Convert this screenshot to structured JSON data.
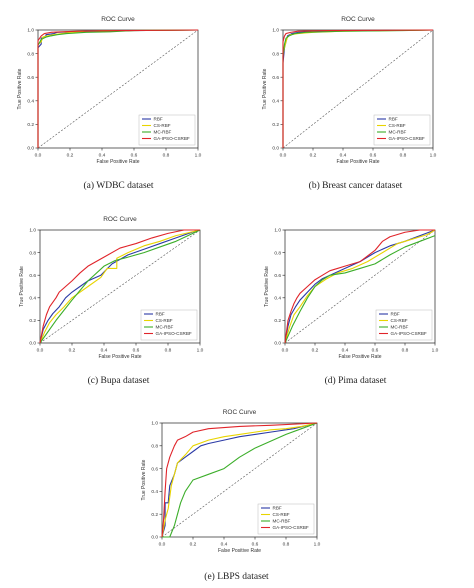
{
  "captions": {
    "a": "(a) WDBC dataset",
    "b": "(b) Breast cancer dataset",
    "c": "(c) Bupa dataset",
    "d": "(d) Pima dataset",
    "e": "(e) LBPS dataset"
  },
  "colors": {
    "RBF": "#2b3aa6",
    "CS-RBF": "#e8d400",
    "MC-RBF": "#3cae2a",
    "GA-IPSO-CSRBF": "#e0242a",
    "diagonal": "#555555"
  },
  "chart_data": [
    {
      "id": "a",
      "type": "line",
      "title": "ROC Curve",
      "xlabel": "False Positive Rate",
      "ylabel": "True Positive Rate",
      "xlim": [
        0,
        1
      ],
      "ylim": [
        0,
        1
      ],
      "xticks": [
        "0.0",
        "0.2",
        "0.4",
        "0.6",
        "0.8",
        "1.0"
      ],
      "yticks": [
        "0.0",
        "0.2",
        "0.4",
        "0.6",
        "0.8",
        "1.0"
      ],
      "legend_position": "bottom-right",
      "diagonal": true,
      "series": [
        {
          "name": "RBF",
          "x": [
            0,
            0,
            0.02,
            0.02,
            0.05,
            0.05,
            0.1,
            0.12,
            0.2,
            0.35,
            0.6,
            1.0
          ],
          "y": [
            0,
            0.85,
            0.88,
            0.93,
            0.95,
            0.96,
            0.97,
            0.98,
            0.985,
            0.99,
            0.995,
            1.0
          ]
        },
        {
          "name": "CS-RBF",
          "x": [
            0,
            0,
            0.02,
            0.03,
            0.06,
            0.1,
            0.15,
            0.2,
            0.3,
            0.5,
            1.0
          ],
          "y": [
            0,
            0.88,
            0.9,
            0.94,
            0.95,
            0.96,
            0.97,
            0.98,
            0.99,
            0.995,
            1.0
          ]
        },
        {
          "name": "MC-RBF",
          "x": [
            0,
            0,
            0.02,
            0.05,
            0.08,
            0.12,
            0.18,
            0.3,
            0.45,
            0.6,
            1.0
          ],
          "y": [
            0,
            0.87,
            0.92,
            0.94,
            0.95,
            0.96,
            0.97,
            0.98,
            0.985,
            0.995,
            1.0
          ]
        },
        {
          "name": "GA-IPSO-CSRBF",
          "x": [
            0,
            0,
            0.01,
            0.02,
            0.04,
            0.08,
            0.15,
            0.25,
            0.5,
            1.0
          ],
          "y": [
            0,
            0.91,
            0.93,
            0.95,
            0.97,
            0.98,
            0.985,
            0.99,
            0.995,
            1.0
          ]
        }
      ]
    },
    {
      "id": "b",
      "type": "line",
      "title": "ROC Curve",
      "xlabel": "False Positive Rate",
      "ylabel": "True Positive Rate",
      "xlim": [
        0,
        1
      ],
      "ylim": [
        0,
        1
      ],
      "xticks": [
        "0.0",
        "0.2",
        "0.4",
        "0.6",
        "0.8",
        "1.0"
      ],
      "yticks": [
        "0.0",
        "0.2",
        "0.4",
        "0.6",
        "0.8",
        "1.0"
      ],
      "legend_position": "bottom-right",
      "diagonal": true,
      "series": [
        {
          "name": "RBF",
          "x": [
            0,
            0,
            0.01,
            0.02,
            0.03,
            0.06,
            0.1,
            0.3,
            0.6,
            1.0
          ],
          "y": [
            0,
            0.72,
            0.85,
            0.9,
            0.95,
            0.97,
            0.98,
            0.99,
            0.995,
            1.0
          ]
        },
        {
          "name": "CS-RBF",
          "x": [
            0,
            0,
            0.02,
            0.03,
            0.05,
            0.1,
            0.2,
            0.4,
            0.7,
            1.0
          ],
          "y": [
            0,
            0.8,
            0.9,
            0.94,
            0.96,
            0.97,
            0.98,
            0.99,
            0.995,
            1.0
          ]
        },
        {
          "name": "MC-RBF",
          "x": [
            0,
            0,
            0.01,
            0.02,
            0.04,
            0.08,
            0.15,
            0.4,
            0.8,
            1.0
          ],
          "y": [
            0,
            0.78,
            0.88,
            0.93,
            0.95,
            0.97,
            0.98,
            0.99,
            0.995,
            1.0
          ]
        },
        {
          "name": "GA-IPSO-CSRBF",
          "x": [
            0,
            0,
            0.01,
            0.02,
            0.05,
            0.1,
            0.3,
            1.0
          ],
          "y": [
            0,
            0.9,
            0.95,
            0.97,
            0.98,
            0.99,
            0.995,
            1.0
          ]
        }
      ]
    },
    {
      "id": "c",
      "type": "line",
      "title": "ROC Curve",
      "xlabel": "False Positive Rate",
      "ylabel": "True Positive Rate",
      "xlim": [
        0,
        1
      ],
      "ylim": [
        0,
        1
      ],
      "xticks": [
        "0.0",
        "0.2",
        "0.4",
        "0.6",
        "0.8",
        "1.0"
      ],
      "yticks": [
        "0.0",
        "0.2",
        "0.4",
        "0.6",
        "0.8",
        "1.0"
      ],
      "legend_position": "bottom-right",
      "diagonal": true,
      "series": [
        {
          "name": "RBF",
          "x": [
            0,
            0.02,
            0.05,
            0.08,
            0.12,
            0.16,
            0.2,
            0.25,
            0.3,
            0.38,
            0.45,
            0.55,
            0.65,
            0.75,
            0.85,
            0.95,
            1.0
          ],
          "y": [
            0,
            0.12,
            0.2,
            0.26,
            0.32,
            0.4,
            0.45,
            0.5,
            0.55,
            0.6,
            0.7,
            0.78,
            0.83,
            0.88,
            0.93,
            0.98,
            1.0
          ]
        },
        {
          "name": "CS-RBF",
          "x": [
            0,
            0.03,
            0.06,
            0.1,
            0.15,
            0.2,
            0.3,
            0.38,
            0.42,
            0.48,
            0.48,
            0.55,
            0.65,
            0.75,
            0.85,
            1.0
          ],
          "y": [
            0,
            0.1,
            0.18,
            0.25,
            0.32,
            0.4,
            0.5,
            0.58,
            0.66,
            0.66,
            0.75,
            0.8,
            0.86,
            0.9,
            0.95,
            1.0
          ]
        },
        {
          "name": "MC-RBF",
          "x": [
            0,
            0.1,
            0.2,
            0.3,
            0.4,
            0.47,
            0.55,
            0.65,
            0.75,
            0.85,
            1.0
          ],
          "y": [
            0,
            0.2,
            0.38,
            0.55,
            0.68,
            0.73,
            0.76,
            0.8,
            0.85,
            0.9,
            1.0
          ]
        },
        {
          "name": "GA-IPSO-CSRBF",
          "x": [
            0,
            0.02,
            0.04,
            0.06,
            0.08,
            0.1,
            0.12,
            0.16,
            0.2,
            0.25,
            0.3,
            0.35,
            0.4,
            0.5,
            0.6,
            0.7,
            0.8,
            0.9,
            1.0
          ],
          "y": [
            0,
            0.15,
            0.25,
            0.32,
            0.36,
            0.4,
            0.45,
            0.5,
            0.55,
            0.62,
            0.68,
            0.72,
            0.76,
            0.84,
            0.88,
            0.93,
            0.97,
            1.0,
            1.0
          ]
        }
      ]
    },
    {
      "id": "d",
      "type": "line",
      "title": "",
      "xlabel": "False Positive Rate",
      "ylabel": "True Positive Rate",
      "xlim": [
        0,
        1
      ],
      "ylim": [
        0,
        1
      ],
      "xticks": [
        "0.0",
        "0.2",
        "0.4",
        "0.6",
        "0.8",
        "1.0"
      ],
      "yticks": [
        "0.0",
        "0.2",
        "0.4",
        "0.6",
        "0.8",
        "1.0"
      ],
      "legend_position": "bottom-right",
      "diagonal": true,
      "series": [
        {
          "name": "RBF",
          "x": [
            0,
            0.02,
            0.04,
            0.07,
            0.1,
            0.15,
            0.2,
            0.25,
            0.3,
            0.4,
            0.5,
            0.6,
            0.7,
            0.8,
            0.9,
            1.0
          ],
          "y": [
            0,
            0.15,
            0.25,
            0.32,
            0.38,
            0.45,
            0.52,
            0.57,
            0.6,
            0.66,
            0.72,
            0.8,
            0.86,
            0.9,
            0.95,
            1.0
          ]
        },
        {
          "name": "CS-RBF",
          "x": [
            0,
            0.03,
            0.06,
            0.1,
            0.15,
            0.2,
            0.28,
            0.35,
            0.45,
            0.55,
            0.65,
            0.75,
            0.85,
            0.95,
            1.0
          ],
          "y": [
            0,
            0.14,
            0.25,
            0.32,
            0.42,
            0.5,
            0.57,
            0.62,
            0.66,
            0.72,
            0.8,
            0.88,
            0.92,
            0.96,
            1.0
          ]
        },
        {
          "name": "MC-RBF",
          "x": [
            0,
            0.05,
            0.1,
            0.15,
            0.2,
            0.25,
            0.3,
            0.4,
            0.5,
            0.6,
            0.7,
            0.8,
            0.9,
            1.0
          ],
          "y": [
            0,
            0.15,
            0.28,
            0.4,
            0.5,
            0.56,
            0.6,
            0.62,
            0.66,
            0.7,
            0.78,
            0.85,
            0.9,
            0.95
          ]
        },
        {
          "name": "GA-IPSO-CSRBF",
          "x": [
            0,
            0.02,
            0.04,
            0.06,
            0.08,
            0.1,
            0.15,
            0.2,
            0.25,
            0.3,
            0.35,
            0.4,
            0.5,
            0.6,
            0.65,
            0.7,
            0.75,
            0.8,
            0.9,
            1.0
          ],
          "y": [
            0,
            0.2,
            0.28,
            0.35,
            0.4,
            0.44,
            0.5,
            0.56,
            0.6,
            0.64,
            0.66,
            0.68,
            0.72,
            0.82,
            0.9,
            0.94,
            0.96,
            0.98,
            1.0,
            1.0
          ]
        }
      ]
    },
    {
      "id": "e",
      "type": "line",
      "title": "ROC Curve",
      "xlabel": "False Positive Rate",
      "ylabel": "True Positive Rate",
      "xlim": [
        0,
        1
      ],
      "ylim": [
        0,
        1
      ],
      "xticks": [
        "0.0",
        "0.2",
        "0.4",
        "0.6",
        "0.8",
        "1.0"
      ],
      "yticks": [
        "0.0",
        "0.2",
        "0.4",
        "0.6",
        "0.8",
        "1.0"
      ],
      "legend_position": "bottom-right",
      "diagonal": true,
      "series": [
        {
          "name": "RBF",
          "x": [
            0,
            0.02,
            0.02,
            0.04,
            0.05,
            0.08,
            0.1,
            0.15,
            0.2,
            0.25,
            0.3,
            0.4,
            0.5,
            0.6,
            0.7,
            0.85,
            1.0
          ],
          "y": [
            0,
            0.1,
            0.3,
            0.3,
            0.45,
            0.55,
            0.65,
            0.7,
            0.75,
            0.8,
            0.82,
            0.85,
            0.88,
            0.9,
            0.92,
            0.95,
            1.0
          ]
        },
        {
          "name": "CS-RBF",
          "x": [
            0,
            0.02,
            0.04,
            0.06,
            0.08,
            0.1,
            0.15,
            0.2,
            0.3,
            0.4,
            0.5,
            0.6,
            0.7,
            0.8,
            0.9,
            1.0
          ],
          "y": [
            0,
            0.15,
            0.25,
            0.45,
            0.55,
            0.65,
            0.72,
            0.8,
            0.85,
            0.88,
            0.9,
            0.92,
            0.94,
            0.95,
            0.97,
            1.0
          ]
        },
        {
          "name": "MC-RBF",
          "x": [
            0,
            0.05,
            0.08,
            0.1,
            0.12,
            0.15,
            0.2,
            0.3,
            0.4,
            0.5,
            0.6,
            0.7,
            0.8,
            0.9,
            1.0
          ],
          "y": [
            0,
            0.0,
            0.1,
            0.2,
            0.3,
            0.4,
            0.5,
            0.55,
            0.6,
            0.7,
            0.78,
            0.84,
            0.9,
            0.95,
            1.0
          ]
        },
        {
          "name": "GA-IPSO-CSRBF",
          "x": [
            0,
            0.01,
            0.02,
            0.03,
            0.05,
            0.08,
            0.1,
            0.15,
            0.2,
            0.3,
            0.5,
            0.7,
            1.0
          ],
          "y": [
            0,
            0.15,
            0.4,
            0.6,
            0.7,
            0.8,
            0.85,
            0.88,
            0.92,
            0.95,
            0.97,
            0.98,
            1.0
          ]
        }
      ]
    }
  ]
}
